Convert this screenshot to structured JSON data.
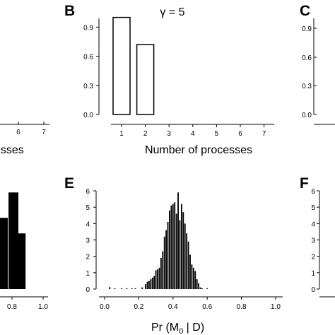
{
  "panels": {
    "A": {
      "xlabel_fragment": "esses",
      "xticks": [
        "6",
        "7"
      ]
    },
    "B": {
      "letter": "B",
      "title": "γ = 5",
      "xlabel": "Number of processes"
    },
    "C": {
      "letter": "C",
      "yticks": [
        "0.9",
        "0.6",
        "0.3",
        "0.0"
      ]
    },
    "D": {
      "xticks": [
        "0.8",
        "1.0"
      ]
    },
    "E": {
      "letter": "E",
      "xlabel_main": "Pr (M",
      "xlabel_sub": "0",
      "xlabel_tail": " | D)"
    },
    "F": {
      "letter": "F",
      "yticks": [
        "6",
        "5",
        "4",
        "3",
        "2",
        "1",
        "0"
      ]
    }
  },
  "chart_data": [
    {
      "panel": "B",
      "type": "bar",
      "title": "γ = 5",
      "xlabel": "Number of processes",
      "ylabel": "",
      "categories": [
        "1",
        "2",
        "3",
        "4",
        "5",
        "6",
        "7"
      ],
      "values": [
        1.0,
        0.72,
        0,
        0,
        0,
        0,
        0
      ],
      "xlim": [
        0,
        7
      ],
      "ylim": [
        0,
        0.99
      ],
      "yticks": [
        "0.0",
        "0.3",
        "0.6",
        "0.9"
      ],
      "bar_style": "outline",
      "grid": false
    },
    {
      "panel": "E",
      "type": "bar",
      "title": "",
      "xlabel": "Pr (M0 | D)",
      "ylabel": "",
      "bin_width": 0.01,
      "x": [
        0.03,
        0.06,
        0.1,
        0.13,
        0.16,
        0.18,
        0.22,
        0.24,
        0.25,
        0.26,
        0.27,
        0.28,
        0.29,
        0.3,
        0.31,
        0.32,
        0.33,
        0.34,
        0.35,
        0.36,
        0.37,
        0.38,
        0.39,
        0.4,
        0.41,
        0.42,
        0.43,
        0.44,
        0.45,
        0.46,
        0.47,
        0.48,
        0.49,
        0.5,
        0.51,
        0.52,
        0.53,
        0.54,
        0.55,
        0.56,
        0.57,
        0.6
      ],
      "values": [
        0.12,
        0.05,
        0.05,
        0.05,
        0.05,
        0.05,
        0.1,
        0.3,
        0.45,
        0.5,
        0.6,
        0.7,
        0.8,
        1.15,
        1.2,
        1.3,
        1.9,
        2.3,
        3.2,
        3.6,
        4.1,
        4.8,
        5.1,
        5.2,
        5.3,
        4.6,
        5.9,
        4.2,
        5.2,
        4.7,
        4.0,
        3.4,
        2.9,
        2.1,
        1.5,
        1.3,
        1.1,
        0.6,
        0.35,
        0.1,
        0.05,
        0.05
      ],
      "xlim": [
        -0.03,
        1.03
      ],
      "ylim": [
        0,
        6
      ],
      "xticks": [
        "0.0",
        "0.2",
        "0.4",
        "0.6",
        "0.8",
        "1.0"
      ],
      "yticks": [
        "0",
        "1",
        "2",
        "3",
        "4",
        "5",
        "6"
      ],
      "grid": false
    },
    {
      "panel": "D",
      "type": "bar",
      "x": [
        0.8,
        0.86
      ],
      "values": [
        5.9,
        3.4
      ],
      "partial": true
    }
  ]
}
